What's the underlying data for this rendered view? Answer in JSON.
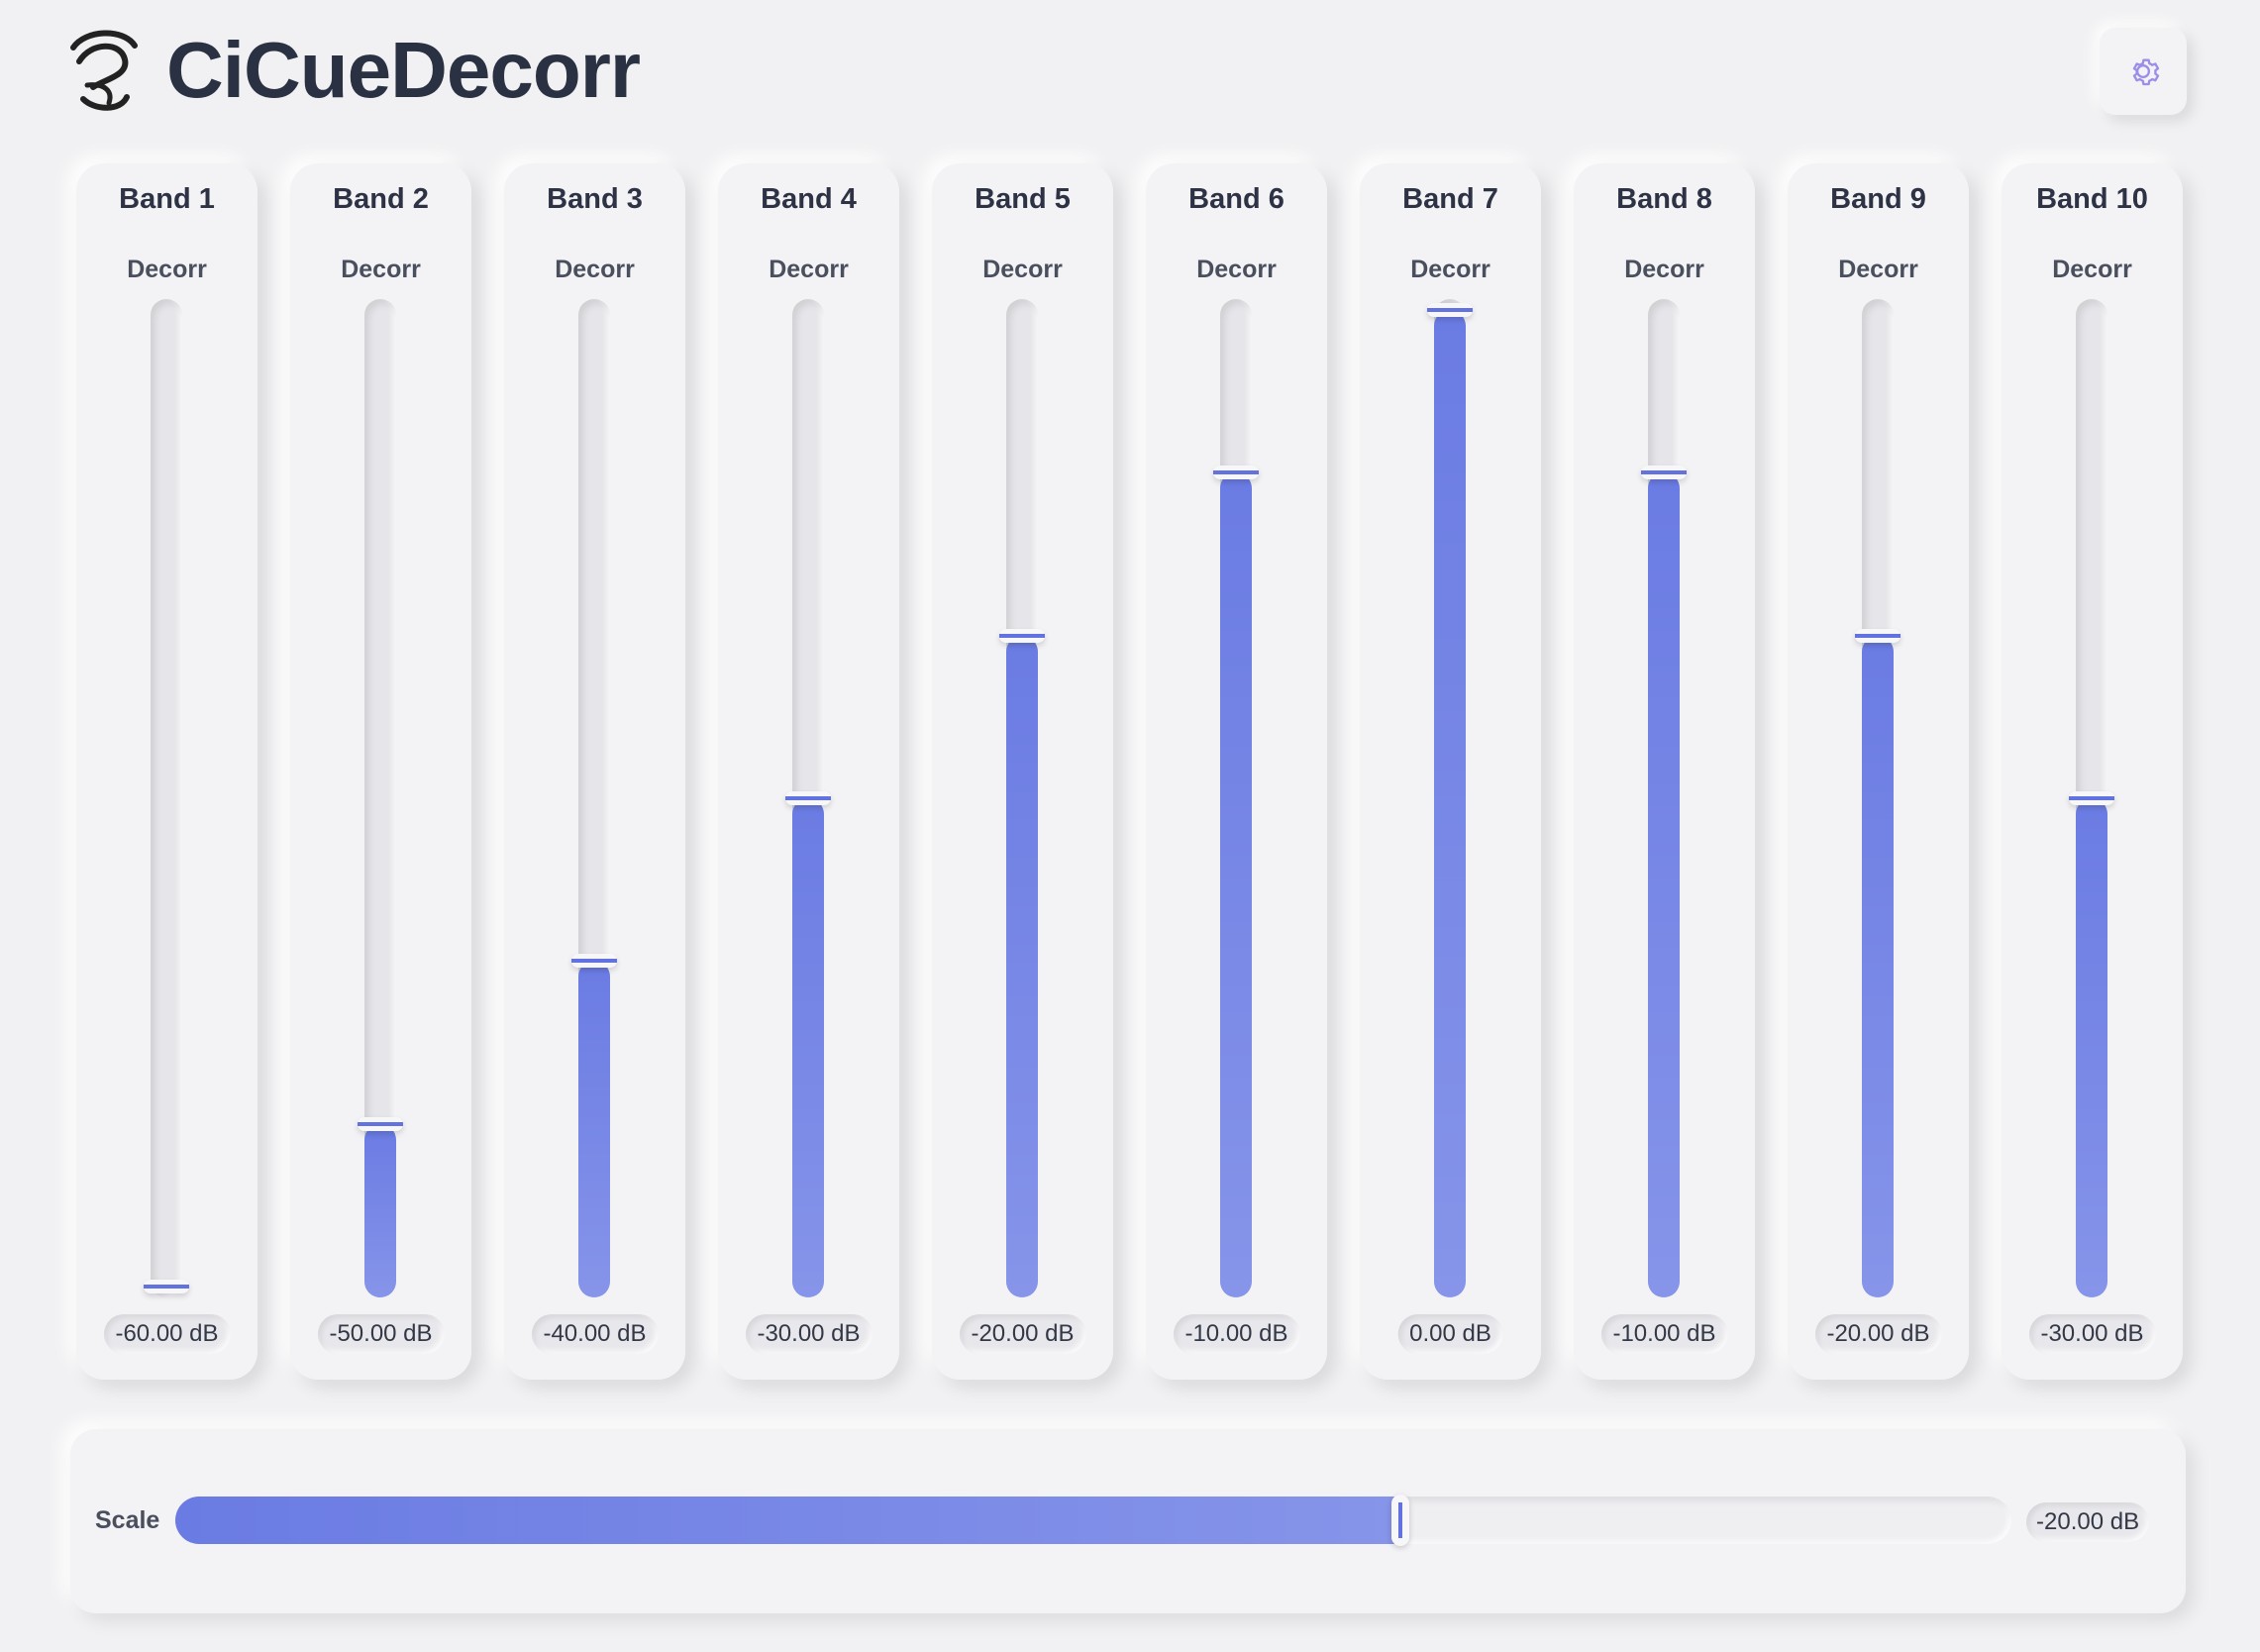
{
  "app": {
    "title": "CiCueDecorr",
    "logo_icon": "ear-icon",
    "settings_icon": "gear-icon"
  },
  "colors": {
    "accent": "#6b7ce4",
    "background": "#f1f1f3",
    "text": "#2b3142"
  },
  "slider_range_db": [
    -60,
    0
  ],
  "bands": [
    {
      "title": "Band 1",
      "label": "Decorr",
      "value_db": -60,
      "value_text": "-60.00 dB"
    },
    {
      "title": "Band 2",
      "label": "Decorr",
      "value_db": -50,
      "value_text": "-50.00 dB"
    },
    {
      "title": "Band 3",
      "label": "Decorr",
      "value_db": -40,
      "value_text": "-40.00 dB"
    },
    {
      "title": "Band 4",
      "label": "Decorr",
      "value_db": -30,
      "value_text": "-30.00 dB"
    },
    {
      "title": "Band 5",
      "label": "Decorr",
      "value_db": -20,
      "value_text": "-20.00 dB"
    },
    {
      "title": "Band 6",
      "label": "Decorr",
      "value_db": -10,
      "value_text": "-10.00 dB"
    },
    {
      "title": "Band 7",
      "label": "Decorr",
      "value_db": 0,
      "value_text": "0.00 dB"
    },
    {
      "title": "Band 8",
      "label": "Decorr",
      "value_db": -10,
      "value_text": "-10.00 dB"
    },
    {
      "title": "Band 9",
      "label": "Decorr",
      "value_db": -20,
      "value_text": "-20.00 dB"
    },
    {
      "title": "Band 10",
      "label": "Decorr",
      "value_db": -30,
      "value_text": "-30.00 dB"
    }
  ],
  "scale": {
    "label": "Scale",
    "value_text": "-20.00 dB",
    "fraction": 0.667
  }
}
